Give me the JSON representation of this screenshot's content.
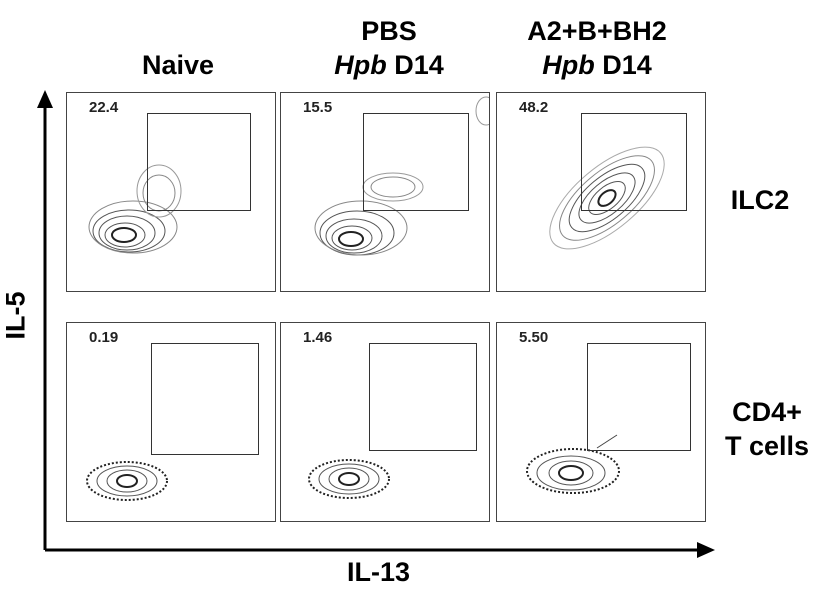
{
  "columns": [
    {
      "line1": "",
      "line2": "Naive",
      "line2_plain": true
    },
    {
      "line1": "PBS",
      "line2_italic": "Hpb",
      "line2_rest": " D14"
    },
    {
      "line1": "A2+B+BH2",
      "line2_italic": "Hpb",
      "line2_rest": " D14"
    }
  ],
  "rows": [
    {
      "label_line1": "ILC2",
      "label_line2": ""
    },
    {
      "label_line1": "CD4+",
      "label_line2": "T cells"
    }
  ],
  "axes": {
    "y_label": "IL-5",
    "x_label": "IL-13"
  },
  "gate_percentages": [
    [
      "22.4",
      "15.5",
      "48.2"
    ],
    [
      "0.19",
      "1.46",
      "5.50"
    ]
  ]
}
